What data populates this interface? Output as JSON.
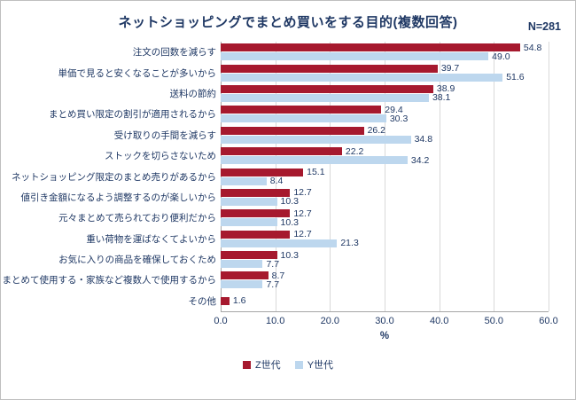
{
  "header": {
    "title": "ネットショッピングでまとめ買いをする目的(複数回答)",
    "sample_size": "N=281"
  },
  "chart_data": {
    "type": "bar",
    "orientation": "horizontal",
    "title": "ネットショッピングでまとめ買いをする目的(複数回答)",
    "sample_size": "N=281",
    "categories": [
      "注文の回数を減らす",
      "単価で見ると安くなることが多いから",
      "送料の節約",
      "まとめ買い限定の割引が適用されるから",
      "受け取りの手間を減らす",
      "ストックを切らさないため",
      "ネットショッピング限定のまとめ売りがあるから",
      "値引き金額になるよう調整するのが楽しいから",
      "元々まとめて売られており便利だから",
      "重い荷物を運ばなくてよいから",
      "お気に入りの商品を確保しておくため",
      "まとめて使用する・家族など複数人で使用するから",
      "その他"
    ],
    "series": [
      {
        "name": "Z世代",
        "color": "#a6192e",
        "values": [
          54.8,
          39.7,
          38.9,
          29.4,
          26.2,
          22.2,
          15.1,
          12.7,
          12.7,
          12.7,
          10.3,
          8.7,
          1.6
        ]
      },
      {
        "name": "Y世代",
        "color": "#bdd7ee",
        "values": [
          49.0,
          51.6,
          38.1,
          30.3,
          34.8,
          34.2,
          8.4,
          10.3,
          10.3,
          21.3,
          7.7,
          7.7,
          null
        ]
      }
    ],
    "xlabel": "%",
    "xlim": [
      0,
      60
    ],
    "xticks": [
      "0.0",
      "10.0",
      "20.0",
      "30.0",
      "40.0",
      "50.0",
      "60.0"
    ],
    "grid": true,
    "legend_position": "bottom",
    "text_color": "#1f3864"
  }
}
